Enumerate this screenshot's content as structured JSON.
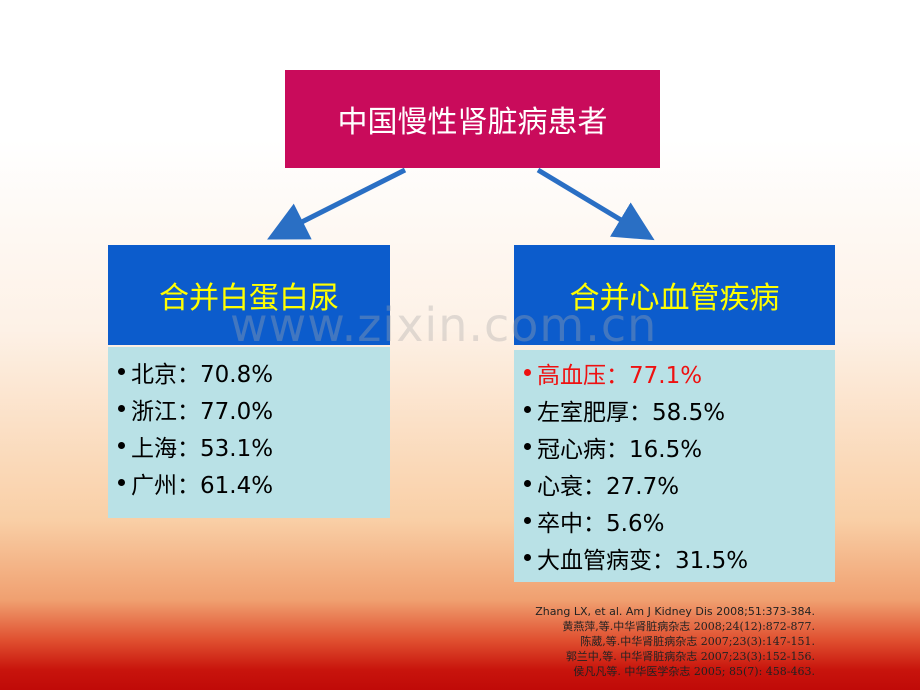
{
  "title": "中国慢性肾脏病患者",
  "watermark": "www.zixin.com.cn",
  "groups": [
    {
      "heading": "合并白蛋白尿",
      "items": [
        "北京：70.8%",
        "浙江：77.0%",
        "上海：53.1%",
        "广州：61.4%"
      ]
    },
    {
      "heading": "合并心血管疾病",
      "items": [
        "高血压：77.1%",
        "左室肥厚：58.5%",
        "冠心病：16.5%",
        "心衰：27.7%",
        "卒中：5.6%",
        "大血管病变：31.5%"
      ]
    }
  ],
  "references": [
    "Zhang LX, et al. Am J Kidney Dis 2008;51:373-384.",
    "黄燕萍,等.中华肾脏病杂志 2008;24(12):872-877.",
    "陈葳,等.中华肾脏病杂志 2007;23(3):147-151.",
    "郭兰中,等. 中华肾脏病杂志 2007;23(3):152-156.",
    "侯凡凡等. 中华医学杂志  2005; 85(7): 458-463."
  ]
}
